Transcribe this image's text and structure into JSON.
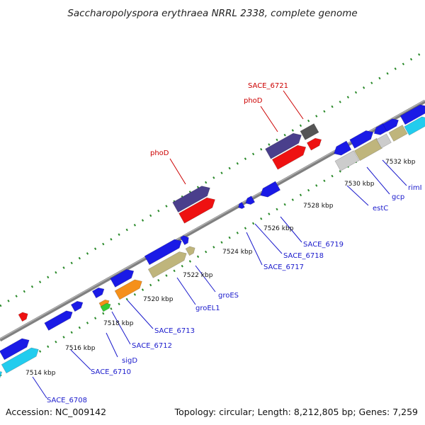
{
  "title": "Saccharopolyspora erythraea NRRL 2338, complete genome",
  "footer": {
    "accession": "Accession: NC_009142",
    "summary": "Topology: circular; Length: 8,212,805 bp; Genes: 7,259"
  },
  "colors": {
    "backbone": "#8a8a8a",
    "label_blue": "#1a1acc",
    "label_red": "#cc0000",
    "ticks": "#2a8a2a",
    "cds_blue": "#1a1ae6",
    "cds_cyan": "#22ccee",
    "cds_navy": "#4a3f8c",
    "cds_red": "#ee1111",
    "cds_khaki": "#bfb57c",
    "cds_orange": "#f5901a",
    "cds_green": "#33cc33",
    "cds_gray": "#cccccc",
    "cds_dark": "#555555"
  },
  "scale_ticks": [
    "7514 kbp",
    "7516 kbp",
    "7518 kbp",
    "7520 kbp",
    "7522 kbp",
    "7524 kbp",
    "7526 kbp",
    "7528 kbp",
    "7530 kbp",
    "7532 kbp"
  ],
  "labels_blue": [
    "SACE_6708",
    "SACE_6710",
    "sigD",
    "SACE_6712",
    "SACE_6713",
    "groEL1",
    "groES",
    "SACE_6717",
    "SACE_6718",
    "SACE_6719",
    "estC",
    "gcp",
    "rimI"
  ],
  "labels_red": [
    "phoD",
    "phoD",
    "SACE_6721"
  ]
}
